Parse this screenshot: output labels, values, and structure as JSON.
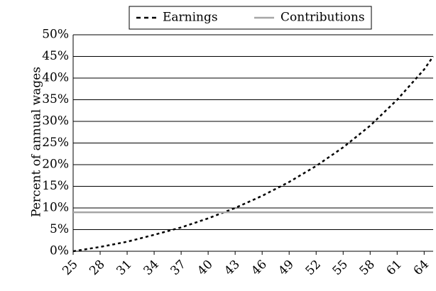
{
  "chart_data": {
    "type": "line",
    "y_label": "Percent of annual wages",
    "x": [
      25,
      28,
      31,
      34,
      37,
      40,
      43,
      46,
      49,
      52,
      55,
      58,
      61,
      64,
      65
    ],
    "series": [
      {
        "name": "Earnings",
        "color": "#000000",
        "dash": true,
        "values": [
          0,
          1,
          2.2,
          3.8,
          5.5,
          7.6,
          10,
          12.8,
          16,
          19.7,
          24,
          29,
          35,
          42,
          45
        ]
      },
      {
        "name": "Contributions",
        "color": "#a6a6a6",
        "dash": false,
        "values": [
          9,
          9,
          9,
          9,
          9,
          9,
          9,
          9,
          9,
          9,
          9,
          9,
          9,
          9,
          9
        ]
      }
    ],
    "xlim": [
      25,
      65
    ],
    "xticks": [
      25,
      28,
      31,
      34,
      37,
      40,
      43,
      46,
      49,
      52,
      55,
      58,
      61,
      64
    ],
    "ylim": [
      0,
      50
    ],
    "yticks": [
      {
        "value": 0,
        "label": "0%"
      },
      {
        "value": 5,
        "label": "5%"
      },
      {
        "value": 10,
        "label": "10%"
      },
      {
        "value": 15,
        "label": "15%"
      },
      {
        "value": 20,
        "label": "20%"
      },
      {
        "value": 25,
        "label": "25%"
      },
      {
        "value": 30,
        "label": "30%"
      },
      {
        "value": 35,
        "label": "35%"
      },
      {
        "value": 40,
        "label": "40%"
      },
      {
        "value": 45,
        "label": "45%"
      },
      {
        "value": 50,
        "label": "50%"
      }
    ],
    "grid": true,
    "legend": "top"
  }
}
